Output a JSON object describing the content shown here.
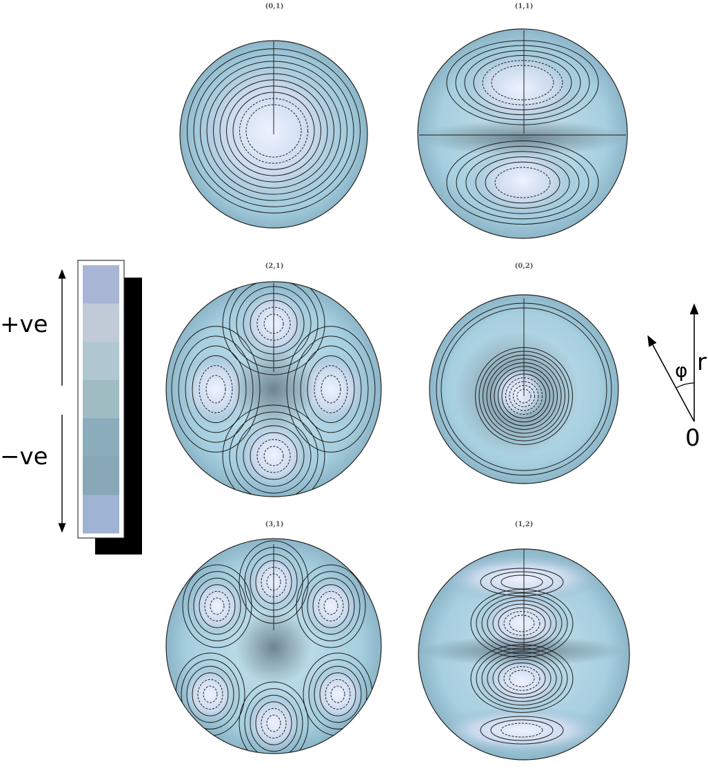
{
  "modes": [
    {
      "label": "(0,1)"
    },
    {
      "label": "(1,1)"
    },
    {
      "label": "(2,1)"
    },
    {
      "label": "(0,2)"
    },
    {
      "label": "(3,1)"
    },
    {
      "label": "(1,2)"
    }
  ],
  "legend": {
    "positive_label": "+ve",
    "negative_label": "−ve",
    "swatch_colors": [
      "#a9b5d4",
      "#c1cbd8",
      "#b0c7d1",
      "#9fbcc3",
      "#8aacbb",
      "#88a7b7",
      "#9fb3d2"
    ]
  },
  "coordinate_axes": {
    "radial_label": "r",
    "angle_label": "φ",
    "origin_label": "0"
  },
  "colors": {
    "membrane_light": "#e4ecf8",
    "membrane_mid": "#a9cfe0",
    "membrane_dark": "#5f7e8c",
    "contour": "#1a1a1a"
  }
}
